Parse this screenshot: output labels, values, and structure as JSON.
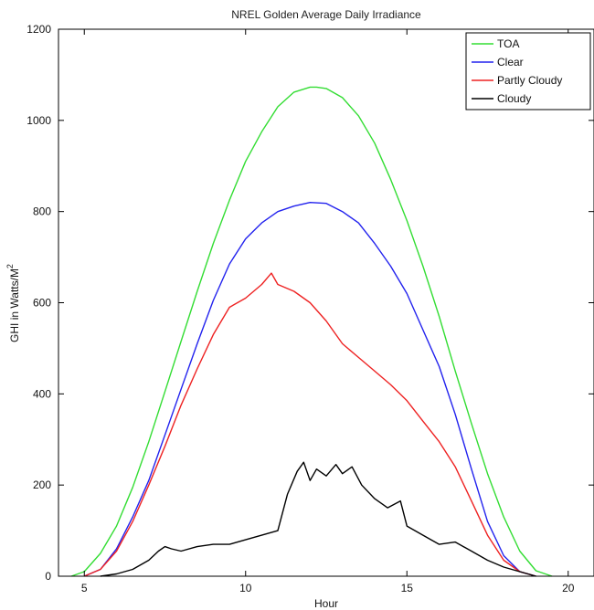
{
  "chart_data": {
    "type": "line",
    "title": "NREL Golden Average Daily Irradiance",
    "xlabel": "Hour",
    "ylabel": "GHI in Watts/M",
    "ylabel_superscript": "2",
    "xlim": [
      4.2,
      20.8
    ],
    "ylim": [
      0,
      1200
    ],
    "xticks": [
      5,
      10,
      15,
      20
    ],
    "yticks": [
      0,
      200,
      400,
      600,
      800,
      1000,
      1200
    ],
    "grid": false,
    "legend_position": "top-right",
    "series": [
      {
        "name": "TOA",
        "color": "#33dd33",
        "x": [
          4.6,
          5.0,
          5.5,
          6.0,
          6.5,
          7.0,
          7.5,
          8.0,
          8.5,
          9.0,
          9.5,
          10.0,
          10.5,
          11.0,
          11.5,
          12.0,
          12.2,
          12.5,
          13.0,
          13.5,
          14.0,
          14.5,
          15.0,
          15.5,
          16.0,
          16.5,
          17.0,
          17.5,
          18.0,
          18.5,
          19.0,
          19.5
        ],
        "y": [
          0,
          10,
          50,
          110,
          195,
          295,
          405,
          515,
          625,
          730,
          825,
          910,
          975,
          1030,
          1062,
          1073,
          1073,
          1070,
          1050,
          1010,
          950,
          870,
          780,
          680,
          570,
          450,
          335,
          225,
          130,
          55,
          12,
          0
        ]
      },
      {
        "name": "Clear",
        "color": "#2222ee",
        "x": [
          5.0,
          5.5,
          6.0,
          6.5,
          7.0,
          7.5,
          8.0,
          8.5,
          9.0,
          9.5,
          10.0,
          10.5,
          11.0,
          11.5,
          12.0,
          12.5,
          13.0,
          13.5,
          14.0,
          14.5,
          15.0,
          15.5,
          16.0,
          16.5,
          17.0,
          17.5,
          18.0,
          18.5,
          19.0
        ],
        "y": [
          0,
          15,
          60,
          130,
          210,
          310,
          410,
          510,
          605,
          685,
          740,
          775,
          800,
          812,
          820,
          818,
          800,
          775,
          730,
          680,
          620,
          540,
          460,
          355,
          235,
          120,
          45,
          10,
          0
        ]
      },
      {
        "name": "Partly Cloudy",
        "color": "#ee2222",
        "x": [
          5.0,
          5.5,
          6.0,
          6.5,
          7.0,
          7.5,
          8.0,
          8.5,
          9.0,
          9.5,
          10.0,
          10.5,
          10.8,
          11.0,
          11.5,
          12.0,
          12.5,
          13.0,
          13.5,
          14.0,
          14.5,
          15.0,
          15.5,
          16.0,
          16.5,
          17.0,
          17.5,
          18.0,
          18.5,
          19.0
        ],
        "y": [
          0,
          15,
          55,
          120,
          200,
          285,
          375,
          455,
          530,
          590,
          610,
          640,
          665,
          640,
          625,
          600,
          560,
          510,
          480,
          450,
          420,
          385,
          340,
          295,
          240,
          165,
          90,
          35,
          10,
          0
        ]
      },
      {
        "name": "Cloudy",
        "color": "#000000",
        "x": [
          5.5,
          6.0,
          6.5,
          7.0,
          7.3,
          7.5,
          7.7,
          8.0,
          8.5,
          9.0,
          9.5,
          10.0,
          10.5,
          11.0,
          11.3,
          11.6,
          11.8,
          12.0,
          12.2,
          12.5,
          12.8,
          13.0,
          13.3,
          13.6,
          14.0,
          14.4,
          14.8,
          15.0,
          15.5,
          16.0,
          16.5,
          17.0,
          17.5,
          18.0,
          18.5,
          19.0
        ],
        "y": [
          0,
          5,
          15,
          35,
          55,
          65,
          60,
          55,
          65,
          70,
          70,
          80,
          90,
          100,
          180,
          230,
          250,
          210,
          235,
          220,
          245,
          225,
          240,
          200,
          170,
          150,
          165,
          110,
          90,
          70,
          75,
          55,
          35,
          20,
          10,
          0
        ]
      }
    ]
  }
}
